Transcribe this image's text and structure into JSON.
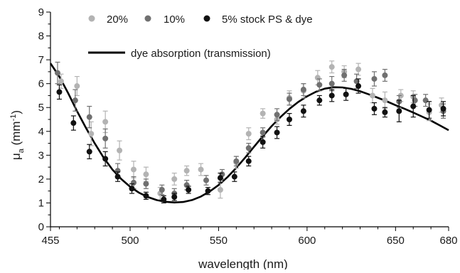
{
  "chart_data": {
    "type": "scatter",
    "xlabel": "wavelength (nm)",
    "ylabel": "μa (mm⁻¹)",
    "ylabel_main": "μ",
    "ylabel_sub": "a",
    "ylabel_unit_open": " (mm",
    "ylabel_unit_sup": "-1",
    "ylabel_unit_close": ")",
    "xlim": [
      455,
      680
    ],
    "ylim": [
      0,
      9
    ],
    "x_ticks": [
      455,
      500,
      550,
      600,
      650,
      680
    ],
    "y_ticks": [
      0,
      1,
      2,
      3,
      4,
      5,
      6,
      7,
      8,
      9
    ],
    "grid": false,
    "legend": {
      "placement": "top-left",
      "entries": [
        "20%",
        "10%",
        "5% stock PS & dye",
        "dye absorption (transmission)"
      ]
    },
    "series": [
      {
        "name": "20%",
        "kind": "points",
        "color": "#b3b3b3",
        "x": [
          461,
          470,
          478,
          486,
          494,
          502,
          509,
          517,
          525,
          532,
          540,
          551,
          560,
          567,
          575,
          583,
          590,
          598,
          606,
          614,
          621,
          629,
          637,
          644,
          653,
          660,
          669,
          676
        ],
        "y": [
          6.1,
          5.9,
          3.9,
          4.4,
          3.2,
          2.4,
          2.2,
          1.4,
          2.0,
          2.35,
          2.4,
          1.55,
          2.7,
          3.9,
          4.75,
          4.5,
          5.4,
          5.7,
          6.25,
          6.7,
          6.5,
          6.6,
          5.5,
          5.3,
          5.5,
          5.45,
          4.8,
          5.1
        ],
        "err": [
          0.3,
          0.4,
          0.5,
          0.45,
          0.4,
          0.35,
          0.3,
          0.25,
          0.25,
          0.2,
          0.25,
          0.35,
          0.25,
          0.25,
          0.2,
          0.2,
          0.3,
          0.3,
          0.3,
          0.25,
          0.25,
          0.25,
          0.3,
          0.35,
          0.25,
          0.25,
          0.35,
          0.3
        ]
      },
      {
        "name": "10%",
        "kind": "points",
        "color": "#707070",
        "x": [
          459,
          469,
          477,
          486,
          493,
          502,
          509,
          518,
          525,
          532,
          543,
          552,
          560,
          567,
          575,
          583,
          590,
          598,
          607,
          614,
          621,
          628,
          638,
          644,
          652,
          661,
          667,
          677
        ],
        "y": [
          6.45,
          5.3,
          4.6,
          3.7,
          2.35,
          1.85,
          1.8,
          1.55,
          1.4,
          1.75,
          1.95,
          2.2,
          2.75,
          3.3,
          3.95,
          4.7,
          5.35,
          5.75,
          5.95,
          6.0,
          6.35,
          6.1,
          6.2,
          6.35,
          5.25,
          5.3,
          5.3,
          4.85
        ],
        "err": [
          0.45,
          0.45,
          0.45,
          0.4,
          0.3,
          0.25,
          0.2,
          0.2,
          0.2,
          0.2,
          0.2,
          0.2,
          0.2,
          0.2,
          0.2,
          0.25,
          0.25,
          0.25,
          0.25,
          0.3,
          0.25,
          0.3,
          0.3,
          0.25,
          0.25,
          0.25,
          0.25,
          0.3
        ]
      },
      {
        "name": "5% stock PS & dye",
        "kind": "points",
        "color": "#111111",
        "x": [
          460,
          468,
          477,
          486,
          493,
          501,
          509,
          519,
          525,
          533,
          544,
          551,
          559,
          567,
          575,
          583,
          590,
          598,
          607,
          614,
          622,
          629,
          638,
          644,
          652,
          660,
          669,
          677
        ],
        "y": [
          5.65,
          4.35,
          3.15,
          2.85,
          2.1,
          1.6,
          1.3,
          1.15,
          1.25,
          1.55,
          1.5,
          2.05,
          2.1,
          2.75,
          3.55,
          3.95,
          4.5,
          4.85,
          5.3,
          5.5,
          5.55,
          5.9,
          4.95,
          4.8,
          4.85,
          5.05,
          4.9,
          4.95
        ],
        "err": [
          0.3,
          0.3,
          0.3,
          0.3,
          0.2,
          0.2,
          0.15,
          0.15,
          0.15,
          0.15,
          0.15,
          0.2,
          0.2,
          0.2,
          0.25,
          0.25,
          0.25,
          0.25,
          0.2,
          0.25,
          0.25,
          0.3,
          0.25,
          0.2,
          0.45,
          0.45,
          0.35,
          0.3
        ]
      },
      {
        "name": "dye absorption (transmission)",
        "kind": "line",
        "color": "#000000",
        "x": [
          455,
          460,
          465,
          470,
          475,
          480,
          485,
          490,
          495,
          500,
          505,
          510,
          515,
          520,
          525,
          530,
          535,
          540,
          545,
          550,
          555,
          560,
          565,
          570,
          575,
          580,
          585,
          590,
          595,
          600,
          605,
          610,
          615,
          620,
          625,
          630,
          635,
          640,
          645,
          650,
          655,
          660,
          665,
          670,
          675,
          680
        ],
        "y": [
          6.85,
          6.3,
          5.6,
          4.85,
          4.15,
          3.5,
          2.9,
          2.4,
          2.0,
          1.68,
          1.43,
          1.25,
          1.12,
          1.05,
          1.02,
          1.04,
          1.12,
          1.27,
          1.48,
          1.75,
          2.08,
          2.47,
          2.9,
          3.35,
          3.8,
          4.22,
          4.6,
          4.94,
          5.23,
          5.47,
          5.66,
          5.79,
          5.85,
          5.84,
          5.78,
          5.68,
          5.55,
          5.41,
          5.26,
          5.1,
          4.95,
          4.79,
          4.62,
          4.45,
          4.25,
          4.05
        ]
      }
    ]
  }
}
